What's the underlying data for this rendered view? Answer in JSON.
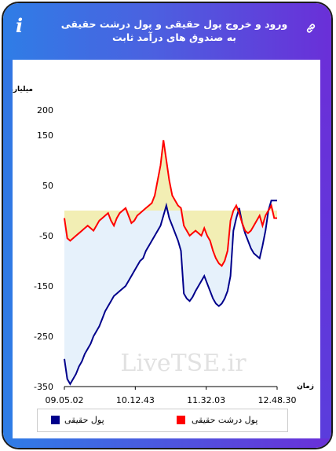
{
  "header": {
    "title": "ورود و خروج پول حقیقی و پول درشت حقیقی به صندوق های درآمد ثابت",
    "info_icon": "info-icon",
    "link_icon": "link-icon"
  },
  "watermark": "LiveTSE.ir",
  "colors": {
    "real_money": "#00008b",
    "big_real_money": "#ff0000",
    "positive_fill": "#f2eeb4",
    "negative_fill": "#e6f1fb"
  },
  "chart_data": {
    "type": "line",
    "ylabel": "میلیارد تومان",
    "xlabel": "زمان",
    "ylim": [
      -350,
      200
    ],
    "yticks": [
      200,
      150,
      50,
      -50,
      -150,
      -250,
      -350
    ],
    "xtick_labels": [
      "09.05.02",
      "10.12.43",
      "11.32.03",
      "12.48.30"
    ],
    "grid": false,
    "legend_position": "bottom",
    "series": [
      {
        "name": "پول حقیقی",
        "color": "#00008b",
        "values": [
          -295,
          -335,
          -345,
          -335,
          -325,
          -310,
          -300,
          -285,
          -275,
          -265,
          -250,
          -240,
          -230,
          -215,
          -200,
          -190,
          -180,
          -170,
          -165,
          -160,
          -155,
          -150,
          -140,
          -130,
          -120,
          -110,
          -100,
          -95,
          -80,
          -70,
          -60,
          -50,
          -40,
          -30,
          -10,
          10,
          -15,
          -30,
          -45,
          -60,
          -80,
          -165,
          -175,
          -180,
          -172,
          -160,
          -150,
          -140,
          -130,
          -145,
          -160,
          -175,
          -185,
          -190,
          -185,
          -175,
          -160,
          -130,
          -40,
          -15,
          5,
          -25,
          -45,
          -60,
          -75,
          -85,
          -90,
          -95,
          -70,
          -40,
          0,
          20,
          20,
          20
        ]
      },
      {
        "name": "پول درشت حقیقی",
        "color": "#ff0000",
        "values": [
          -15,
          -55,
          -60,
          -55,
          -50,
          -45,
          -40,
          -35,
          -30,
          -35,
          -40,
          -30,
          -20,
          -15,
          -10,
          -5,
          -20,
          -30,
          -15,
          -5,
          0,
          5,
          -10,
          -25,
          -20,
          -10,
          -5,
          0,
          5,
          10,
          15,
          30,
          60,
          90,
          140,
          100,
          60,
          30,
          20,
          10,
          5,
          -30,
          -40,
          -50,
          -45,
          -40,
          -45,
          -50,
          -35,
          -50,
          -60,
          -80,
          -95,
          -105,
          -110,
          -100,
          -80,
          -20,
          0,
          10,
          -5,
          -25,
          -40,
          -45,
          -40,
          -30,
          -20,
          -10,
          -30,
          -10,
          0,
          10,
          -15,
          -15
        ]
      }
    ]
  }
}
